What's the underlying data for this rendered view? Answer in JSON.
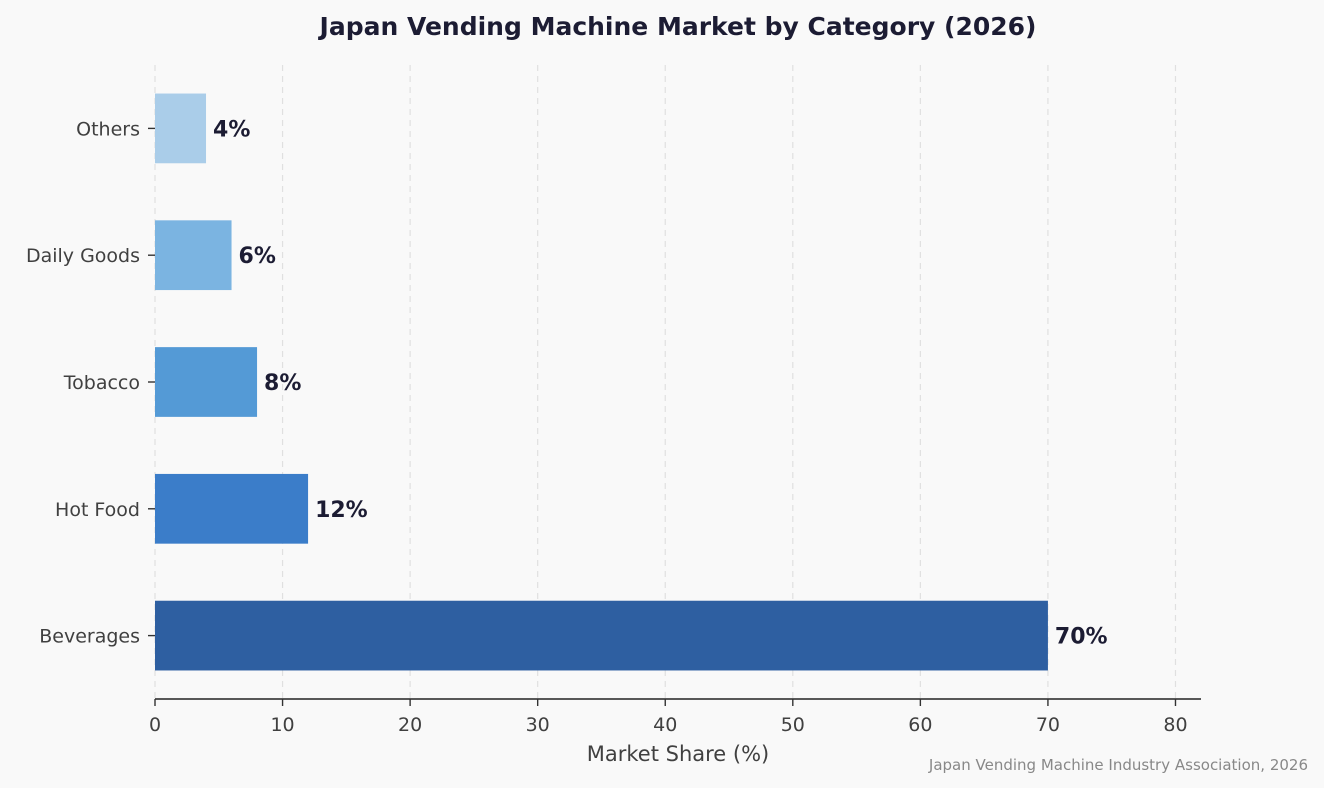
{
  "chart_data": {
    "type": "bar",
    "orientation": "horizontal",
    "title": "Japan Vending Machine Market by Category (2026)",
    "xlabel": "Market Share (%)",
    "ylabel": "",
    "categories": [
      "Beverages",
      "Hot Food",
      "Tobacco",
      "Daily Goods",
      "Others"
    ],
    "values": [
      70,
      12,
      8,
      6,
      4
    ],
    "value_labels": [
      "70%",
      "12%",
      "8%",
      "6%",
      "4%"
    ],
    "colors": [
      "#2e5fa1",
      "#3b7dc9",
      "#549ad6",
      "#7bb4e1",
      "#aacde9"
    ],
    "xlim": [
      0,
      82
    ],
    "xticks": [
      0,
      10,
      20,
      30,
      40,
      50,
      60,
      70,
      80
    ],
    "grid": "vertical-dashed",
    "legend": "none"
  },
  "source_note": "Japan Vending Machine Industry Association, 2026"
}
